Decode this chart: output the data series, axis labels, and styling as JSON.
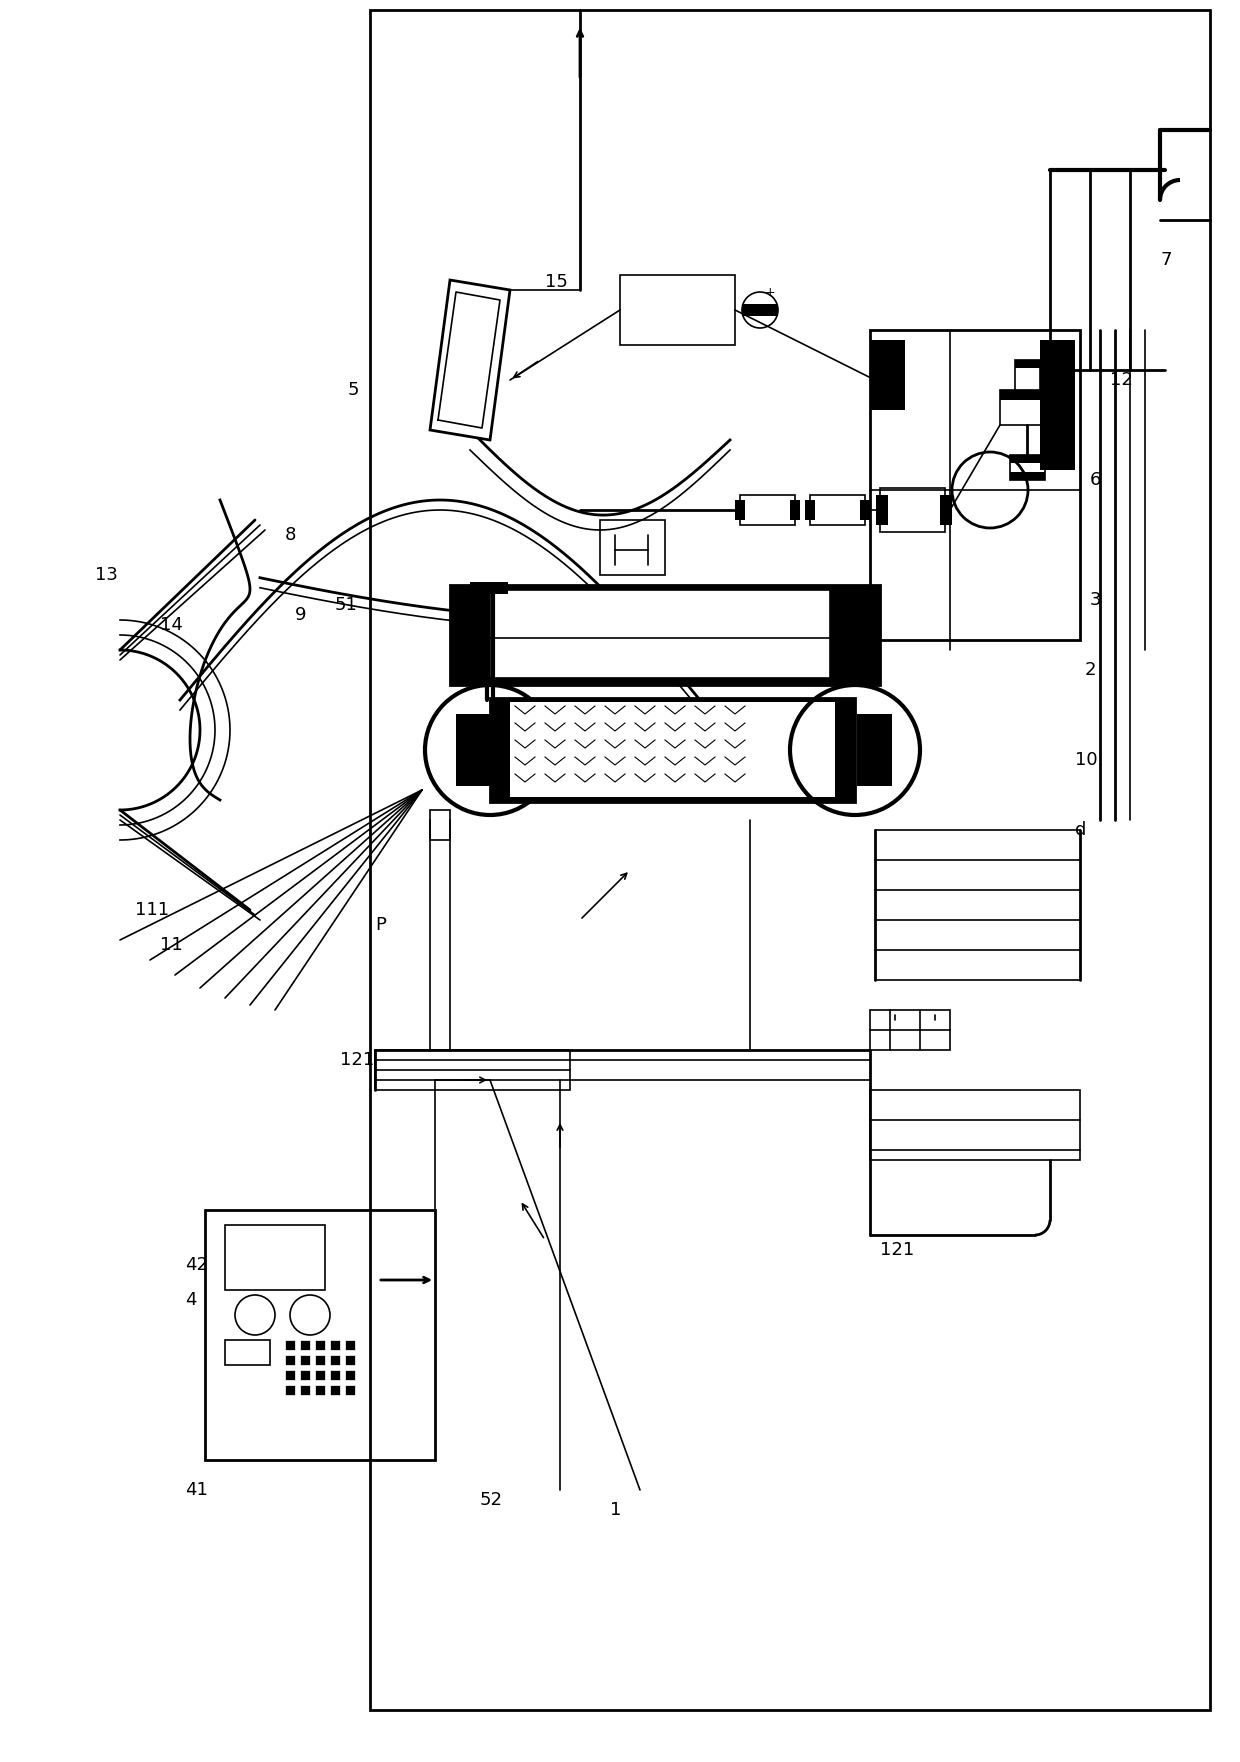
{
  "fig_width": 12.4,
  "fig_height": 17.62,
  "dpi": 100,
  "lw": 1.2,
  "lw2": 2.0,
  "lw3": 3.0
}
